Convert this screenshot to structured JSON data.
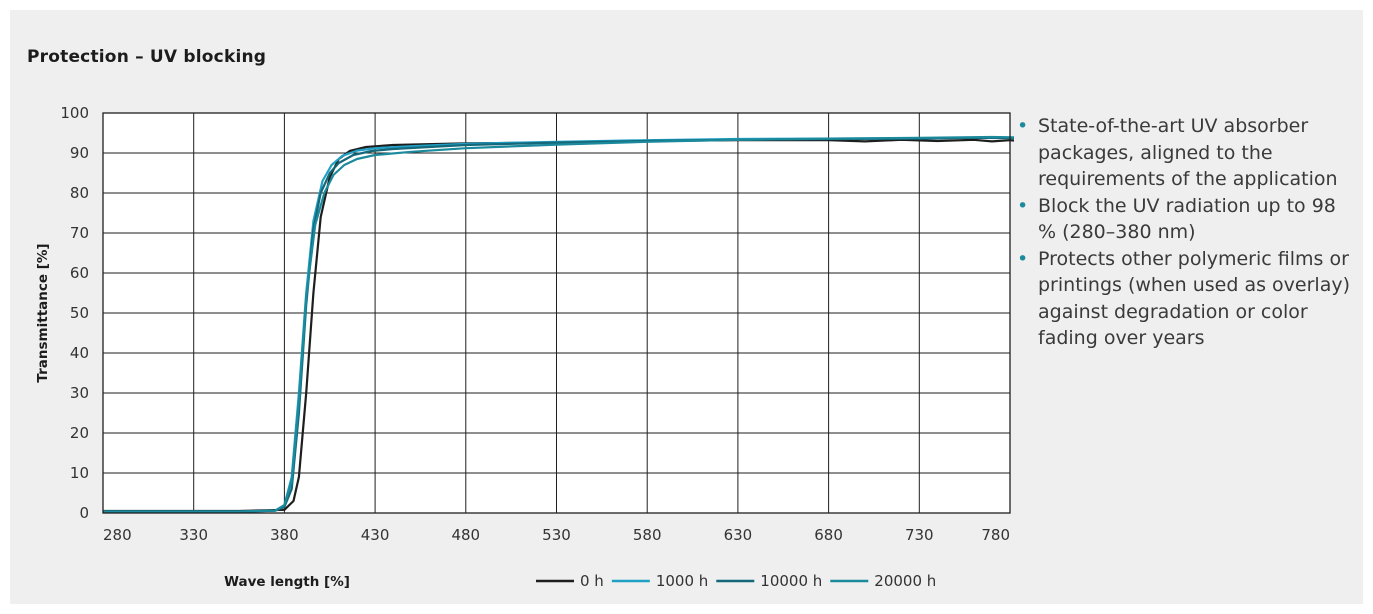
{
  "title": "Protection – UV blocking",
  "chart_data": {
    "type": "line",
    "xlabel": "Wave length [%]",
    "ylabel": "Transmittance [%]",
    "xlim": [
      280,
      780
    ],
    "ylim": [
      0,
      100
    ],
    "xticks": [
      280,
      330,
      380,
      430,
      480,
      530,
      580,
      630,
      680,
      730,
      780
    ],
    "yticks": [
      0,
      10,
      20,
      30,
      40,
      50,
      60,
      70,
      80,
      90,
      100
    ],
    "grid": true,
    "legend_position": "bottom",
    "series": [
      {
        "name": "0 h",
        "color": "#1e1e1e",
        "x": [
          275,
          300,
          330,
          355,
          380,
          385,
          388,
          392,
          396,
          400,
          405,
          410,
          416,
          425,
          440,
          480,
          530,
          580,
          630,
          680,
          700,
          720,
          740,
          760,
          770,
          780,
          785
        ],
        "y": [
          0.5,
          0.5,
          0.5,
          0.5,
          0.8,
          3,
          9,
          30,
          55,
          74,
          84,
          88.5,
          90.5,
          91.5,
          92,
          92.4,
          92.6,
          93,
          93.2,
          93.2,
          92.9,
          93.3,
          93,
          93.3,
          92.9,
          93.2,
          93
        ]
      },
      {
        "name": "1000 h",
        "color": "#1fa0c4",
        "x": [
          275,
          300,
          330,
          355,
          375,
          380,
          384,
          388,
          392,
          396,
          401,
          406,
          412,
          420,
          430,
          450,
          480,
          530,
          580,
          630,
          680,
          730,
          770,
          785
        ],
        "y": [
          0.3,
          0.3,
          0.3,
          0.3,
          0.6,
          2,
          9,
          30,
          55,
          73,
          83,
          87,
          89.3,
          90.6,
          91.2,
          91.7,
          92.3,
          92.8,
          93.2,
          93.5,
          93.6,
          93.7,
          93.9,
          93.8
        ]
      },
      {
        "name": "10000 h",
        "color": "#14687a",
        "x": [
          275,
          300,
          330,
          355,
          375,
          380,
          384,
          388,
          392,
          396,
          400,
          405,
          410,
          418,
          428,
          440,
          460,
          480,
          530,
          580,
          630,
          680,
          730,
          760,
          785
        ],
        "y": [
          0.3,
          0.3,
          0.3,
          0.3,
          0.6,
          1.5,
          6,
          25,
          52,
          71,
          80,
          85,
          87.5,
          89.5,
          90.5,
          91,
          91.5,
          92,
          92.6,
          93,
          93.3,
          93.5,
          93.6,
          93.8,
          93.7
        ]
      },
      {
        "name": "20000 h",
        "color": "#1a8a9c",
        "x": [
          275,
          300,
          330,
          355,
          375,
          380,
          384,
          388,
          392,
          397,
          402,
          407,
          413,
          420,
          430,
          450,
          480,
          530,
          580,
          630,
          680,
          730,
          770,
          785
        ],
        "y": [
          0.4,
          0.4,
          0.4,
          0.4,
          0.6,
          2,
          8,
          28,
          54,
          72,
          80,
          84.5,
          87,
          88.5,
          89.5,
          90.3,
          91.2,
          92.1,
          92.8,
          93.3,
          93.6,
          93.8,
          94,
          93.9
        ]
      }
    ]
  },
  "bullets": [
    "State-of-the-art UV absorber packages, aligned to the requirements of the application",
    "Block the UV radiation up to 98 % (280–380 nm)",
    "Protects other polymeric films or printings (when used as overlay) against degradation or color fading over years"
  ]
}
